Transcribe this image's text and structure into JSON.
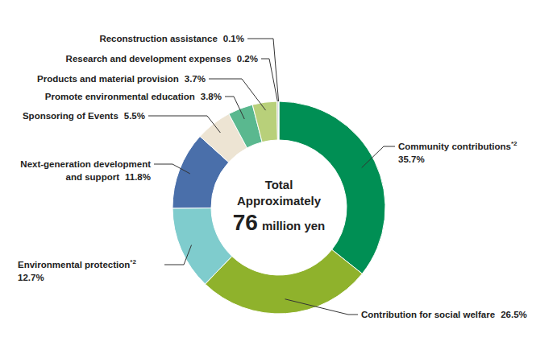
{
  "chart_data": {
    "type": "pie",
    "categories": [
      "Community contributions*2",
      "Contribution for social welfare",
      "Environmental protection*2",
      "Next-generation development and support",
      "Sponsoring of Events",
      "Promote environmental education",
      "Products and material provision",
      "Research and development expenses",
      "Reconstruction assistance"
    ],
    "values": [
      35.7,
      26.5,
      12.7,
      11.8,
      5.5,
      3.8,
      3.7,
      0.2,
      0.1
    ],
    "value_labels": [
      "35.7%",
      "26.5%",
      "12.7%",
      "11.8%",
      "5.5%",
      "3.8%",
      "3.7%",
      "0.2%",
      "0.1%"
    ],
    "colors": [
      "#008f54",
      "#8fb22c",
      "#7fcccd",
      "#4a6faa",
      "#ede4d3",
      "#5ab88f",
      "#b8d07a",
      "#a6a6a6",
      "#d0d0d0"
    ],
    "annotations": [
      "Total",
      "Approximately",
      "76",
      "million yen"
    ],
    "data_labels": true
  }
}
